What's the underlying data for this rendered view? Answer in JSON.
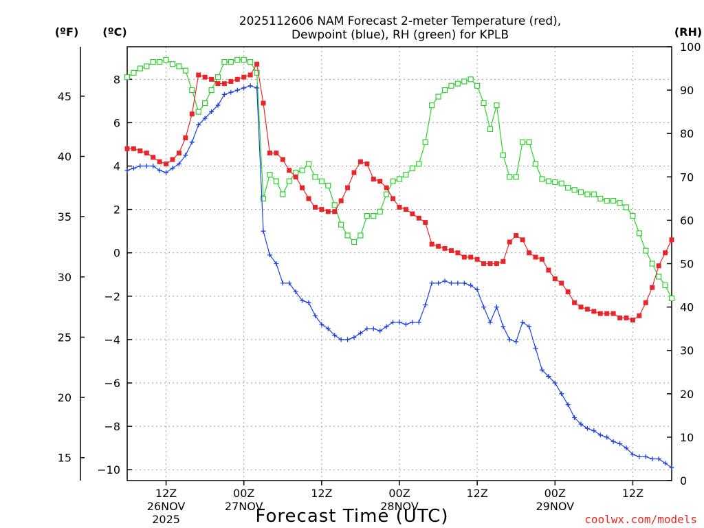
{
  "chart_data": {
    "type": "line",
    "title_line1": "2025112606 NAM Forecast 2-meter Temperature (red),",
    "title_line2": "Dewpoint (blue), RH (green) for KPLB",
    "units": {
      "fahrenheit": "(ºF)",
      "celsius": "(ºC)",
      "rh": "(RH)"
    },
    "xlabel": "Forecast Time (UTC)",
    "credit": "coolwx.com/models",
    "x_unit": "forecast hour from 2025-11-26 06Z",
    "xlim": [
      0,
      84
    ],
    "ylim_celsius": [
      -10.5,
      9.5
    ],
    "ylim_rh": [
      0,
      100
    ],
    "ylim_fahrenheit": [
      13.1,
      49.1
    ],
    "celsius_ticks": [
      8,
      6,
      4,
      2,
      0,
      -2,
      -4,
      -6,
      -8,
      -10
    ],
    "celsius_tick_labels": [
      "8",
      "6",
      "4",
      "2",
      "0",
      "−2",
      "−4",
      "−6",
      "−8",
      "−10"
    ],
    "fahrenheit_ticks": [
      45,
      40,
      35,
      30,
      25,
      20,
      15
    ],
    "fahrenheit_tick_labels": [
      "45",
      "40",
      "35",
      "30",
      "25",
      "20",
      "15"
    ],
    "rh_ticks": [
      100,
      90,
      80,
      70,
      60,
      50,
      40,
      30,
      20,
      10,
      0
    ],
    "rh_tick_labels": [
      "100",
      "90",
      "80",
      "70",
      "60",
      "50",
      "40",
      "30",
      "20",
      "10",
      "0"
    ],
    "x_ticks": [
      {
        "hour": 6,
        "time": "12Z",
        "date": "26NOV",
        "year": "2025"
      },
      {
        "hour": 18,
        "time": "00Z",
        "date": "27NOV",
        "year": ""
      },
      {
        "hour": 30,
        "time": "12Z",
        "date": "",
        "year": ""
      },
      {
        "hour": 42,
        "time": "00Z",
        "date": "28NOV",
        "year": ""
      },
      {
        "hour": 54,
        "time": "12Z",
        "date": "",
        "year": ""
      },
      {
        "hour": 66,
        "time": "00Z",
        "date": "29NOV",
        "year": ""
      },
      {
        "hour": 78,
        "time": "12Z",
        "date": "",
        "year": ""
      }
    ],
    "grid": true,
    "series": [
      {
        "name": "2-meter Temperature",
        "color": "#e8262a",
        "marker": "filled-square",
        "axis": "celsius",
        "x": [
          0,
          1,
          2,
          3,
          4,
          5,
          6,
          7,
          8,
          9,
          10,
          11,
          12,
          13,
          14,
          15,
          16,
          17,
          18,
          19,
          20,
          21,
          22,
          23,
          24,
          25,
          26,
          27,
          28,
          29,
          30,
          31,
          32,
          33,
          34,
          35,
          36,
          37,
          38,
          39,
          40,
          41,
          42,
          43,
          44,
          45,
          46,
          47,
          48,
          49,
          50,
          51,
          52,
          53,
          54,
          55,
          56,
          57,
          58,
          59,
          60,
          61,
          62,
          63,
          64,
          65,
          66,
          67,
          68,
          69,
          70,
          71,
          72,
          73,
          74,
          75,
          76,
          77,
          78,
          79,
          80,
          81,
          82,
          83,
          84
        ],
        "values": [
          4.8,
          4.8,
          4.7,
          4.6,
          4.4,
          4.2,
          4.1,
          4.3,
          4.6,
          5.3,
          6.4,
          8.2,
          8.1,
          8.0,
          7.8,
          7.8,
          7.9,
          8.0,
          8.1,
          8.2,
          8.7,
          6.9,
          4.6,
          4.6,
          4.3,
          3.8,
          3.5,
          3.0,
          2.5,
          2.1,
          2.0,
          1.9,
          1.9,
          2.4,
          3.0,
          3.7,
          4.2,
          4.1,
          3.4,
          3.3,
          3.0,
          2.5,
          2.1,
          2.0,
          1.8,
          1.6,
          1.4,
          0.4,
          0.3,
          0.2,
          0.1,
          0.0,
          -0.2,
          -0.2,
          -0.3,
          -0.5,
          -0.5,
          -0.5,
          -0.4,
          0.5,
          0.8,
          0.6,
          0.0,
          -0.2,
          -0.3,
          -0.8,
          -1.2,
          -1.4,
          -1.8,
          -2.3,
          -2.5,
          -2.6,
          -2.7,
          -2.8,
          -2.8,
          -2.8,
          -3.0,
          -3.0,
          -3.1,
          -2.9,
          -2.3,
          -1.6,
          -0.6,
          0.0,
          0.6
        ]
      },
      {
        "name": "Dewpoint",
        "color": "#1a3fe0",
        "marker": "plus",
        "axis": "celsius",
        "x": [
          0,
          1,
          2,
          3,
          4,
          5,
          6,
          7,
          8,
          9,
          10,
          11,
          12,
          13,
          14,
          15,
          16,
          17,
          18,
          19,
          20,
          21,
          22,
          23,
          24,
          25,
          26,
          27,
          28,
          29,
          30,
          31,
          32,
          33,
          34,
          35,
          36,
          37,
          38,
          39,
          40,
          41,
          42,
          43,
          44,
          45,
          46,
          47,
          48,
          49,
          50,
          51,
          52,
          53,
          54,
          55,
          56,
          57,
          58,
          59,
          60,
          61,
          62,
          63,
          64,
          65,
          66,
          67,
          68,
          69,
          70,
          71,
          72,
          73,
          74,
          75,
          76,
          77,
          78,
          79,
          80,
          81,
          82,
          83,
          84
        ],
        "values": [
          3.8,
          3.9,
          4.0,
          4.0,
          4.0,
          3.8,
          3.7,
          3.9,
          4.1,
          4.5,
          5.1,
          5.9,
          6.2,
          6.5,
          6.8,
          7.3,
          7.4,
          7.5,
          7.6,
          7.7,
          7.6,
          1.0,
          -0.1,
          -0.5,
          -1.4,
          -1.4,
          -1.8,
          -2.2,
          -2.3,
          -2.9,
          -3.3,
          -3.5,
          -3.8,
          -4.0,
          -4.0,
          -3.9,
          -3.7,
          -3.5,
          -3.5,
          -3.6,
          -3.4,
          -3.2,
          -3.2,
          -3.3,
          -3.2,
          -3.2,
          -2.4,
          -1.4,
          -1.4,
          -1.3,
          -1.4,
          -1.4,
          -1.4,
          -1.5,
          -1.7,
          -2.5,
          -3.2,
          -2.5,
          -3.4,
          -4.0,
          -4.1,
          -3.2,
          -3.4,
          -4.4,
          -5.4,
          -5.7,
          -6.0,
          -6.5,
          -7.0,
          -7.6,
          -7.9,
          -8.1,
          -8.2,
          -8.4,
          -8.5,
          -8.7,
          -8.8,
          -9.0,
          -9.3,
          -9.4,
          -9.4,
          -9.5,
          -9.5,
          -9.7,
          -9.9
        ]
      },
      {
        "name": "RH",
        "color": "#2ad02a",
        "marker": "open-square",
        "axis": "rh",
        "x": [
          0,
          1,
          2,
          3,
          4,
          5,
          6,
          7,
          8,
          9,
          10,
          11,
          12,
          13,
          14,
          15,
          16,
          17,
          18,
          19,
          20,
          21,
          22,
          23,
          24,
          25,
          26,
          27,
          28,
          29,
          30,
          31,
          32,
          33,
          34,
          35,
          36,
          37,
          38,
          39,
          40,
          41,
          42,
          43,
          44,
          45,
          46,
          47,
          48,
          49,
          50,
          51,
          52,
          53,
          54,
          55,
          56,
          57,
          58,
          59,
          60,
          61,
          62,
          63,
          64,
          65,
          66,
          67,
          68,
          69,
          70,
          71,
          72,
          73,
          74,
          75,
          76,
          77,
          78,
          79,
          80,
          81,
          82,
          83,
          84
        ],
        "values": [
          93,
          94,
          95,
          95.5,
          96.5,
          96.5,
          97,
          96,
          95.5,
          94.5,
          90,
          85,
          87,
          90,
          93,
          96.5,
          96.5,
          97,
          97,
          96.5,
          94,
          65,
          70.5,
          69,
          66,
          69,
          71,
          71.5,
          73,
          70,
          69,
          68,
          63.5,
          59,
          56.5,
          55,
          56.5,
          61,
          61,
          62,
          66,
          69,
          69.5,
          70.5,
          72,
          73,
          78,
          86.5,
          88.5,
          90,
          91,
          91.5,
          92,
          92.5,
          91,
          87,
          81,
          86.5,
          75,
          70,
          70,
          78,
          78,
          73,
          69.5,
          69,
          68.8,
          68.5,
          67.5,
          67,
          66.5,
          66,
          66,
          65,
          64.5,
          64.5,
          64,
          63,
          61,
          57,
          53,
          50,
          47,
          45,
          42
        ]
      }
    ]
  }
}
